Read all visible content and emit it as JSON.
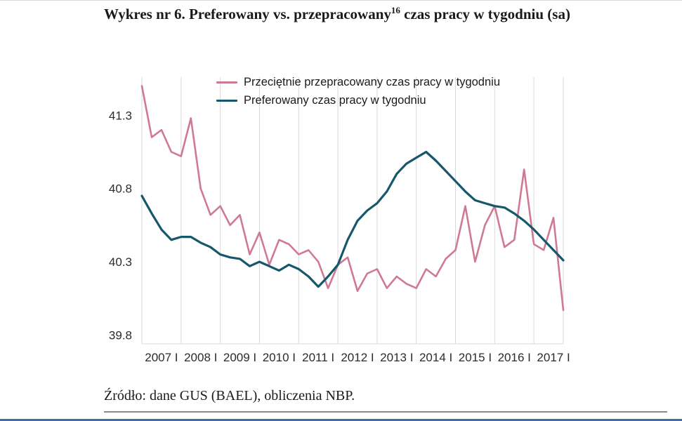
{
  "title": {
    "part1": "Wykres nr  6. Preferowany vs. przepracowany",
    "footnote_marker": "16",
    "part2": " czas pracy w tygodniu (sa)"
  },
  "source_note": "Źródło: dane GUS (BAEL), obliczenia NBP.",
  "colors": {
    "worked_line": "#d07a92",
    "preferred_line": "#17576c",
    "gridline": "#d9d9d9",
    "footer_bar_blue": "#3e6db0"
  },
  "chart_data": {
    "type": "line",
    "title": "Wykres nr 6. Preferowany vs. przepracowany(16) czas pracy w tygodniu (sa)",
    "x_unit": "quarter",
    "years": [
      "2007",
      "2008",
      "2009",
      "2010",
      "2011",
      "2012",
      "2013",
      "2014",
      "2015",
      "2016",
      "2017"
    ],
    "x_tick_suffix": "I",
    "x": [
      "2007Q1",
      "2007Q2",
      "2007Q3",
      "2007Q4",
      "2008Q1",
      "2008Q2",
      "2008Q3",
      "2008Q4",
      "2009Q1",
      "2009Q2",
      "2009Q3",
      "2009Q4",
      "2010Q1",
      "2010Q2",
      "2010Q3",
      "2010Q4",
      "2011Q1",
      "2011Q2",
      "2011Q3",
      "2011Q4",
      "2012Q1",
      "2012Q2",
      "2012Q3",
      "2012Q4",
      "2013Q1",
      "2013Q2",
      "2013Q3",
      "2013Q4",
      "2014Q1",
      "2014Q2",
      "2014Q3",
      "2014Q4",
      "2015Q1",
      "2015Q2",
      "2015Q3",
      "2015Q4",
      "2016Q1",
      "2016Q2",
      "2016Q3",
      "2016Q4",
      "2017Q1",
      "2017Q2",
      "2017Q3",
      "2017Q4"
    ],
    "series": [
      {
        "name": "Przeciętnie przepracowany czas pracy w tygodniu",
        "color": "#d07a92",
        "values": [
          41.5,
          41.15,
          41.2,
          41.05,
          41.02,
          41.28,
          40.8,
          40.62,
          40.68,
          40.55,
          40.62,
          40.35,
          40.5,
          40.28,
          40.45,
          40.42,
          40.35,
          40.38,
          40.3,
          40.12,
          40.28,
          40.33,
          40.1,
          40.22,
          40.25,
          40.12,
          40.2,
          40.15,
          40.12,
          40.25,
          40.2,
          40.32,
          40.38,
          40.68,
          40.3,
          40.55,
          40.68,
          40.4,
          40.45,
          40.93,
          40.42,
          40.38,
          40.6,
          39.97
        ]
      },
      {
        "name": "Preferowany czas pracy w tygodniu",
        "color": "#17576c",
        "values": [
          40.75,
          40.63,
          40.52,
          40.45,
          40.47,
          40.47,
          40.43,
          40.4,
          40.35,
          40.33,
          40.32,
          40.27,
          40.3,
          40.27,
          40.24,
          40.28,
          40.25,
          40.2,
          40.13,
          40.2,
          40.28,
          40.45,
          40.58,
          40.65,
          40.7,
          40.78,
          40.9,
          40.97,
          41.01,
          41.05,
          40.99,
          40.92,
          40.85,
          40.78,
          40.72,
          40.7,
          40.68,
          40.67,
          40.63,
          40.58,
          40.52,
          40.45,
          40.38,
          40.31
        ]
      }
    ],
    "y_ticks": [
      41.3,
      40.8,
      40.3,
      39.8
    ],
    "ylim": [
      39.74,
      41.56
    ],
    "grid": "vertical-year-lines",
    "legend_position": "top-inside"
  }
}
